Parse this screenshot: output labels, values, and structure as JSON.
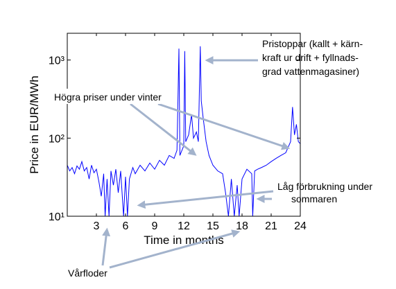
{
  "chart_data": {
    "type": "line",
    "x_label": "Time in months",
    "y_label": "Price in EUR/MWh",
    "log_y": true,
    "color": "#0000ff",
    "xlim": [
      0,
      24
    ],
    "xticks": [
      3,
      6,
      9,
      12,
      15,
      18,
      21,
      24
    ],
    "ylim": [
      10,
      2200
    ],
    "yticks": [
      {
        "value": 10,
        "label": "10¹"
      },
      {
        "value": 100,
        "label": "10²"
      },
      {
        "value": 1000,
        "label": "10³"
      }
    ],
    "x": [
      0,
      0.25,
      0.5,
      0.75,
      1,
      1.25,
      1.5,
      1.75,
      2,
      2.25,
      2.5,
      2.75,
      3,
      3.25,
      3.5,
      3.75,
      3.9,
      4.1,
      4.3,
      4.5,
      4.75,
      5,
      5.25,
      5.5,
      5.8,
      6,
      6.2,
      6.4,
      6.75,
      7,
      7.5,
      8,
      8.5,
      9,
      9.5,
      10,
      10.5,
      11,
      11.3,
      11.5,
      11.6,
      12,
      12.1,
      12.2,
      12.5,
      12.8,
      13,
      13.3,
      13.5,
      13.7,
      13.8,
      14,
      14.3,
      14.6,
      15,
      15.5,
      16,
      16.3,
      16.6,
      16.9,
      17.2,
      17.5,
      17.7,
      18,
      18.5,
      19,
      19.1,
      19.3,
      19.6,
      20,
      20.5,
      21,
      21.5,
      22,
      22.5,
      23,
      23.2,
      23.4,
      23.6,
      23.8,
      24
    ],
    "values": [
      45,
      38,
      42,
      35,
      44,
      40,
      50,
      38,
      42,
      30,
      45,
      36,
      40,
      28,
      18,
      35,
      10,
      30,
      10,
      38,
      25,
      40,
      20,
      38,
      10,
      32,
      10,
      30,
      42,
      35,
      45,
      38,
      48,
      40,
      52,
      45,
      60,
      55,
      70,
      1400,
      60,
      80,
      1300,
      90,
      110,
      200,
      100,
      120,
      90,
      1500,
      300,
      180,
      90,
      60,
      45,
      38,
      35,
      20,
      10,
      30,
      10,
      25,
      10,
      30,
      40,
      35,
      10,
      38,
      40,
      42,
      45,
      50,
      55,
      60,
      65,
      90,
      250,
      110,
      150,
      90,
      85
    ],
    "annotations": [
      {
        "lines": [
          "Pristoppar (kallt + kärn-",
          "kraft ur drift + fyllnads-",
          "grad vattenmagasiner)"
        ]
      },
      {
        "lines": [
          "Högra priser under vinter"
        ]
      },
      {
        "lines": [
          "Låg förbrukning under",
          "sommaren"
        ]
      },
      {
        "lines": [
          "Vårfloder"
        ]
      }
    ]
  }
}
